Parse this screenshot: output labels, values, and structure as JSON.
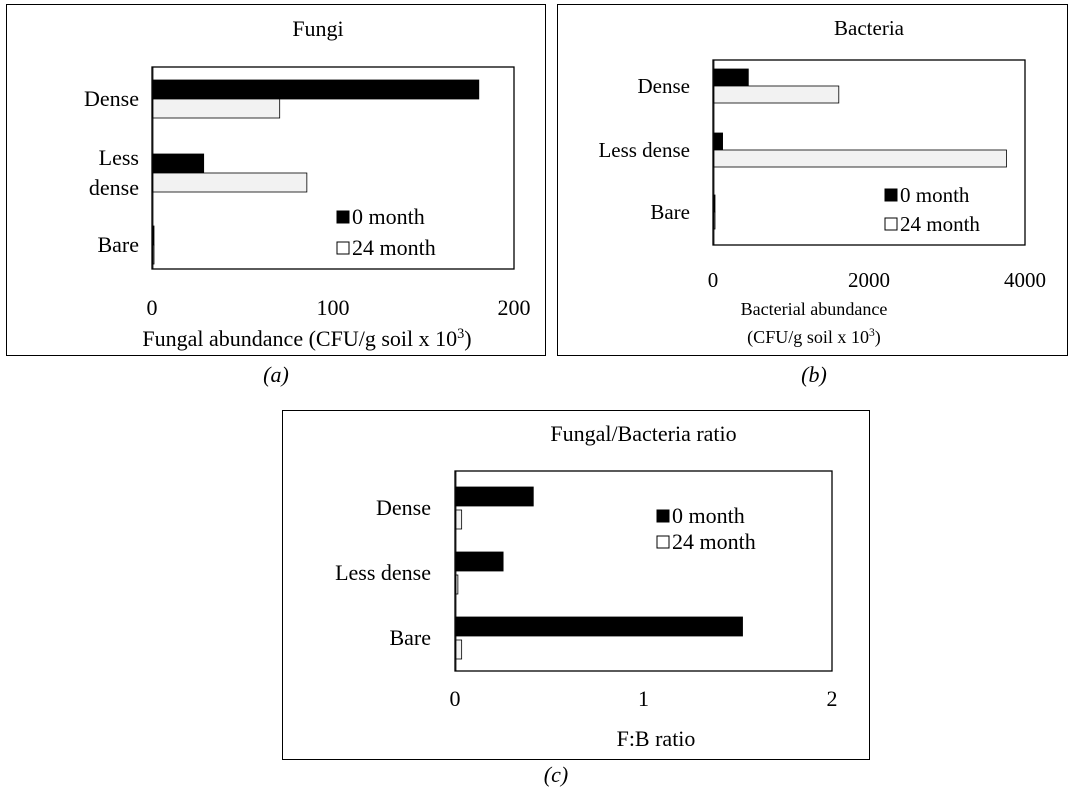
{
  "legend": {
    "series0": "0 month",
    "series1": "24 month"
  },
  "colors": {
    "series0": "#000000",
    "series1": "#f2f2f2"
  },
  "captions": {
    "a": "(a)",
    "b": "(b)",
    "c": "(c)"
  },
  "chart_data": [
    {
      "type": "bar",
      "orientation": "horizontal",
      "title": "Fungi",
      "xlabel_lines": [
        "Fungal abundance (CFU/g soil x 10",
        "3",
        ")"
      ],
      "categories": [
        [
          "Dense"
        ],
        [
          "Less",
          "dense"
        ],
        [
          "Bare"
        ]
      ],
      "series": [
        {
          "name": "0 month",
          "values": [
            180,
            28,
            0.3
          ]
        },
        {
          "name": "24 month",
          "values": [
            70,
            85,
            0.3
          ]
        }
      ],
      "xlim": [
        0,
        200
      ],
      "xticks": [
        0,
        100,
        200
      ],
      "legend_position": "bottom-right"
    },
    {
      "type": "bar",
      "orientation": "horizontal",
      "title": "Bacteria",
      "xlabel_lines": [
        "Bacterial abundance",
        "(CFU/g soil x 10",
        "3",
        ")"
      ],
      "categories": [
        [
          "Dense"
        ],
        [
          "Less dense"
        ],
        [
          "Bare"
        ]
      ],
      "series": [
        {
          "name": "0 month",
          "values": [
            440,
            110,
            5
          ]
        },
        {
          "name": "24 month",
          "values": [
            1600,
            3750,
            10
          ]
        }
      ],
      "xlim": [
        0,
        4000
      ],
      "xticks": [
        0,
        2000,
        4000
      ],
      "legend_position": "bottom-right"
    },
    {
      "type": "bar",
      "orientation": "horizontal",
      "title": "Fungal/Bacteria ratio",
      "xlabel": "F:B ratio",
      "categories": [
        [
          "Dense"
        ],
        [
          "Less dense"
        ],
        [
          "Bare"
        ]
      ],
      "series": [
        {
          "name": "0 month",
          "values": [
            0.41,
            0.25,
            1.52
          ]
        },
        {
          "name": "24 month",
          "values": [
            0.03,
            0.01,
            0.03
          ]
        }
      ],
      "xlim": [
        0,
        2
      ],
      "xticks": [
        0,
        1,
        2
      ],
      "legend_position": "top-right"
    }
  ]
}
